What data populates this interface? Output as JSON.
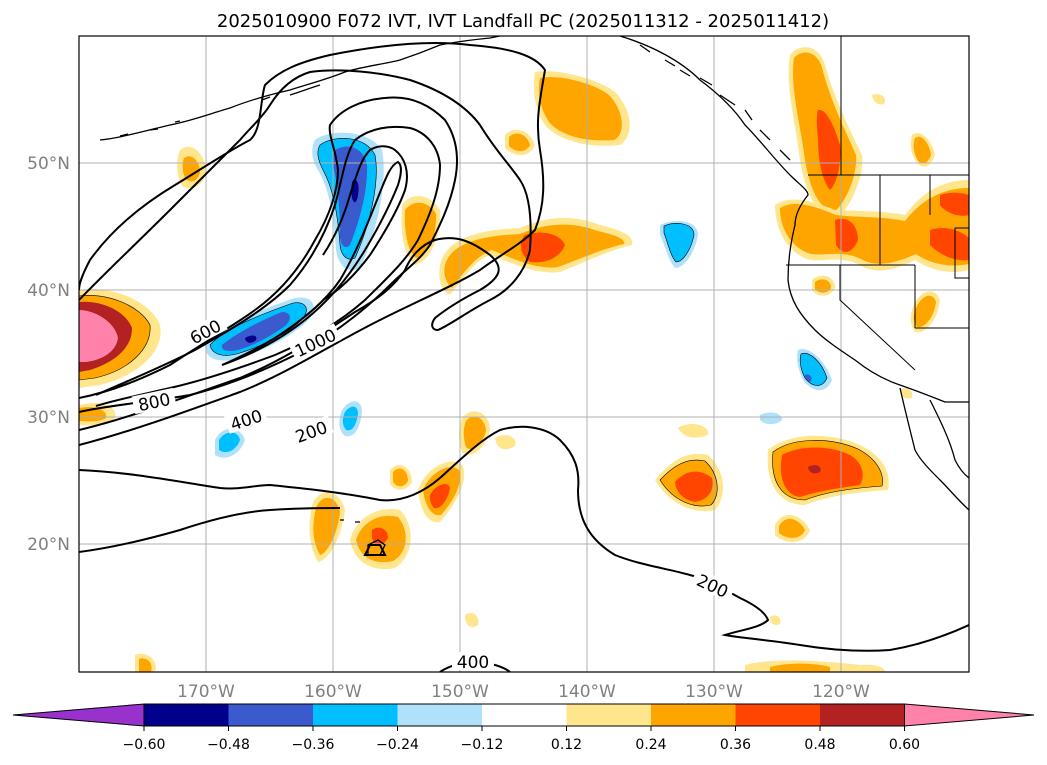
{
  "title": "2025010900 F072 IVT, IVT Landfall PC (2025011312 - 2025011412)",
  "map": {
    "lon_range": [
      -180,
      -110
    ],
    "lat_range": [
      10,
      60
    ],
    "lat_ticks": [
      {
        "value": 20,
        "label": "20°N"
      },
      {
        "value": 30,
        "label": "30°N"
      },
      {
        "value": 40,
        "label": "40°N"
      },
      {
        "value": 50,
        "label": "50°N"
      }
    ],
    "lon_ticks": [
      {
        "value": -170,
        "label": "170°W"
      },
      {
        "value": -160,
        "label": "160°W"
      },
      {
        "value": -150,
        "label": "150°W"
      },
      {
        "value": -140,
        "label": "140°W"
      },
      {
        "value": -130,
        "label": "130°W"
      },
      {
        "value": -120,
        "label": "120°W"
      }
    ],
    "gridlines": true,
    "contour_labels": [
      "600",
      "1000",
      "800",
      "400",
      "200",
      "200",
      "400"
    ]
  },
  "colorbar": {
    "extend": "both",
    "colors": [
      "#9932cc",
      "#00008b",
      "#3a5acd",
      "#00bfff",
      "#afe1fa",
      "#ffffff",
      "#ffe68c",
      "#ffa500",
      "#ff4500",
      "#b22222",
      "#ff82ab"
    ],
    "tick_labels": [
      "−0.60",
      "−0.48",
      "−0.36",
      "−0.24",
      "−0.12",
      "0.12",
      "0.24",
      "0.36",
      "0.48",
      "0.60"
    ]
  },
  "colors": {
    "grid": "#b0b0b0",
    "coast": "#000000"
  }
}
